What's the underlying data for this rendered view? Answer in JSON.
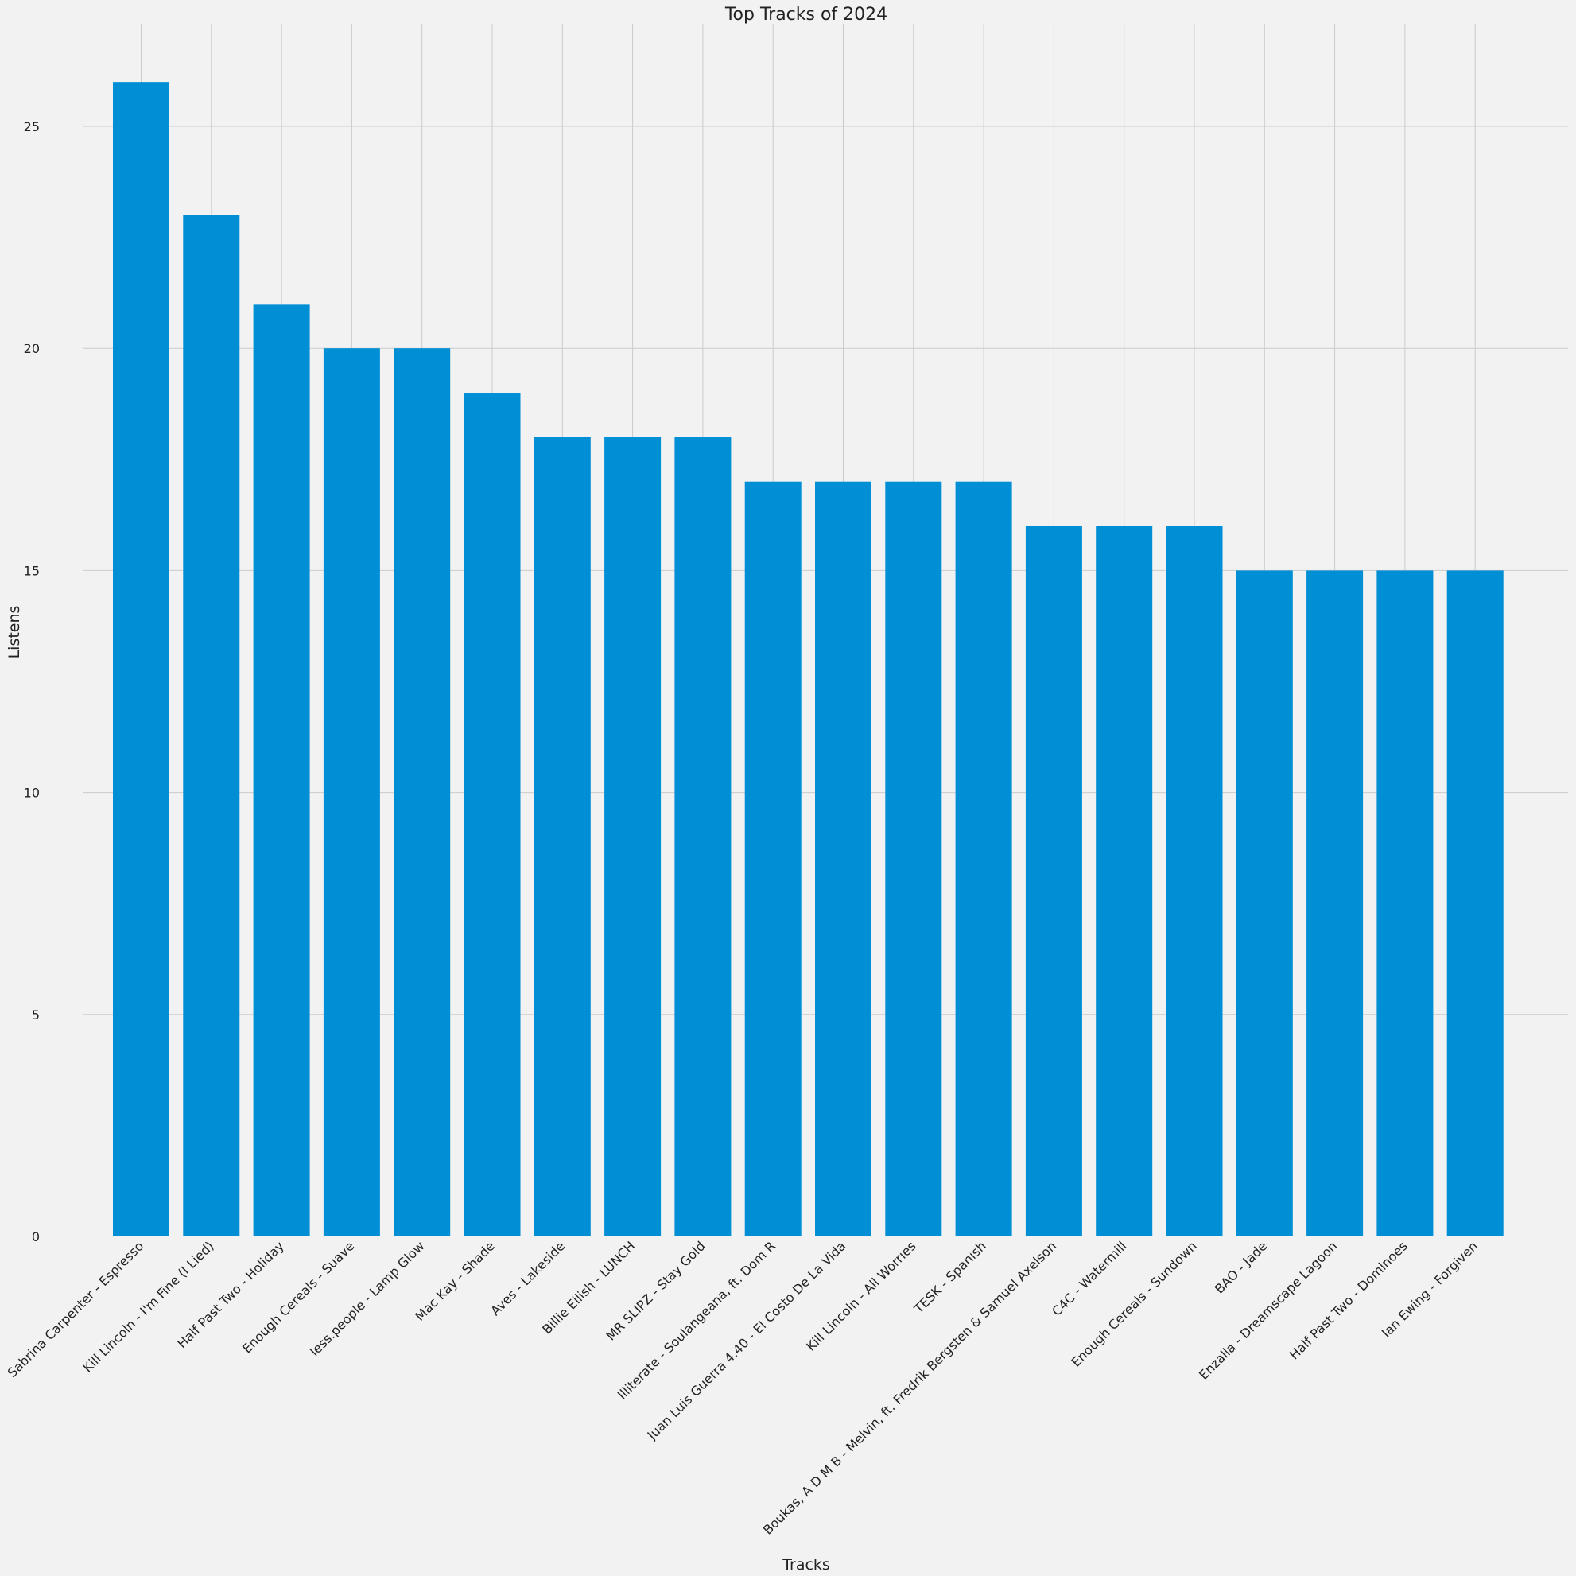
{
  "chart_data": {
    "type": "bar",
    "title": "Top Tracks of 2024",
    "xlabel": "Tracks",
    "ylabel": "Listens",
    "ylim": [
      0,
      27.3
    ],
    "yticks": [
      0,
      5,
      10,
      15,
      20,
      25
    ],
    "grid": true,
    "bar_color": "#008fd5",
    "background_color": "#f2f2f2",
    "grid_color": "#cbcbcb",
    "categories": [
      "Sabrina Carpenter - Espresso",
      "Kill Lincoln - I'm Fine (I Lied)",
      "Half Past Two - Holiday",
      "Enough Cereals - Suave",
      "less.people - Lamp Glow",
      "Mac Kay - Shade",
      "Aves - Lakeside",
      "Billie Eilish - LUNCH",
      "MR SLIPZ - Stay Gold",
      "Illiterate - Soulangeana, ft. Dom R",
      "Juan Luis Guerra 4.40 - El Costo De La Vida",
      "Kill Lincoln - All Worries",
      "TESK - Spanish",
      "Boukas, A D M B - Melvin, ft. Fredrik Bergsten & Samuel Axelson",
      "C4C - Watermill",
      "Enough Cereals - Sundown",
      "BAO - Jade",
      "Enzalla - Dreamscape Lagoon",
      "Half Past Two - Dominoes",
      "Ian Ewing - Forgiven"
    ],
    "values": [
      26,
      23,
      21,
      20,
      20,
      19,
      18,
      18,
      18,
      17,
      17,
      17,
      17,
      16,
      16,
      16,
      15,
      15,
      15,
      15
    ]
  }
}
